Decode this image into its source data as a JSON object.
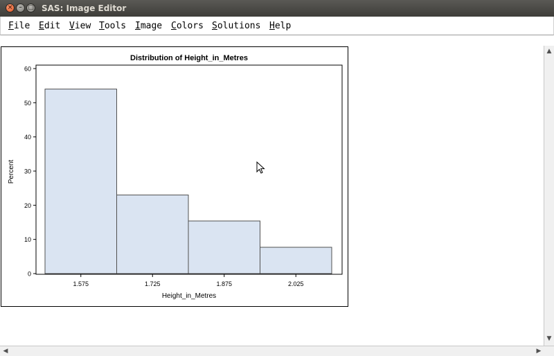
{
  "window": {
    "title": "SAS: Image Editor",
    "close_glyph": "×",
    "minimize_glyph": "–",
    "maximize_glyph": "□"
  },
  "menu": [
    {
      "accel": "F",
      "rest": "ile"
    },
    {
      "accel": "E",
      "rest": "dit"
    },
    {
      "accel": "V",
      "rest": "iew"
    },
    {
      "accel": "T",
      "rest": "ools"
    },
    {
      "accel": "I",
      "rest": "mage"
    },
    {
      "accel": "C",
      "rest": "olors"
    },
    {
      "accel": "S",
      "rest": "olutions"
    },
    {
      "accel": "H",
      "rest": "elp"
    }
  ],
  "chart_data": {
    "type": "bar",
    "title": "Distribution of Height_in_Metres",
    "xlabel": "Height_in_Metres",
    "ylabel": "Percent",
    "categories": [
      "1.575",
      "1.725",
      "1.875",
      "2.025"
    ],
    "values": [
      54,
      23,
      15.4,
      7.7
    ],
    "ylim": [
      0,
      60
    ],
    "yticks": [
      "0",
      "10",
      "20",
      "30",
      "40",
      "50",
      "60"
    ],
    "bar_color": "#dae4f2",
    "bar_edge": "#505050",
    "grid": false
  },
  "scrollbars": {
    "up_glyph": "▲",
    "down_glyph": "▼",
    "left_glyph": "◀",
    "right_glyph": "▶"
  }
}
